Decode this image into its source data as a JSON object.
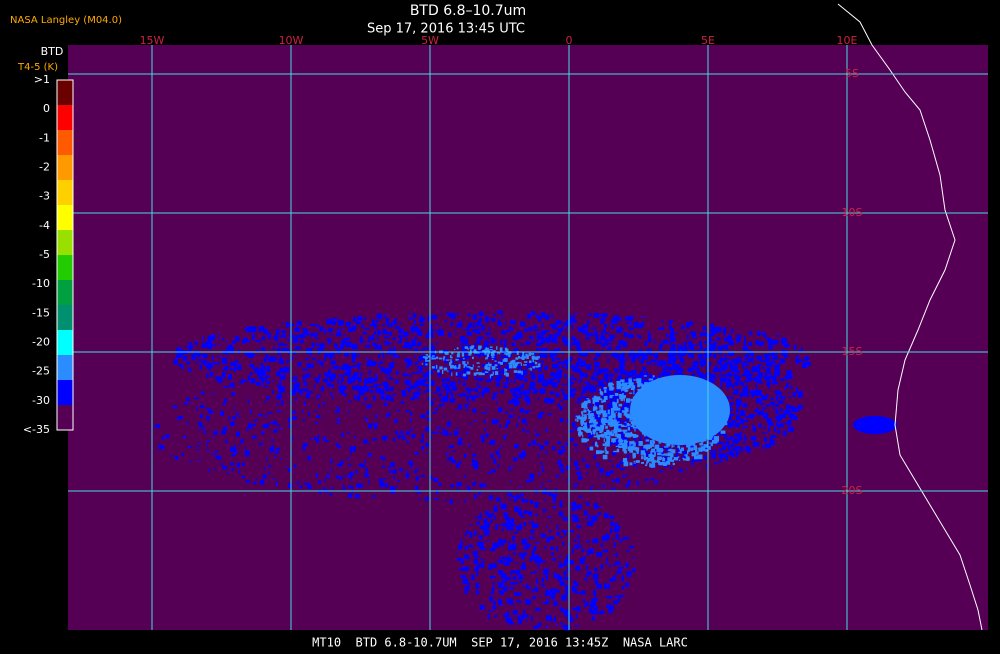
{
  "header": {
    "source": "NASA Langley (M04.0)",
    "title": "BTD 6.8–10.7um",
    "subtitle": "Sep 17, 2016 13:45 UTC"
  },
  "legend": {
    "title": "BTD",
    "unit": "T4-5 (K)",
    "labels": [
      ">1",
      "0",
      "-1",
      "-2",
      "-3",
      "-4",
      "-5",
      "-10",
      "-15",
      "-20",
      "-25",
      "-30",
      "<-35"
    ],
    "colors": [
      "#6b0000",
      "#ff0000",
      "#ff5a00",
      "#ff9900",
      "#ffd000",
      "#ffff00",
      "#99e000",
      "#22cc00",
      "#00a040",
      "#009070",
      "#00ffff",
      "#2a8cff",
      "#0000ff",
      "#550055"
    ]
  },
  "map": {
    "longitudes": [
      "15W",
      "10W",
      "5W",
      "0",
      "5E",
      "10E"
    ],
    "latitudes": [
      "5S",
      "10S",
      "15S",
      "20S"
    ]
  },
  "footer": "MT10  BTD 6.8-10.7UM  SEP 17, 2016 13:45Z  NASA LARC"
}
